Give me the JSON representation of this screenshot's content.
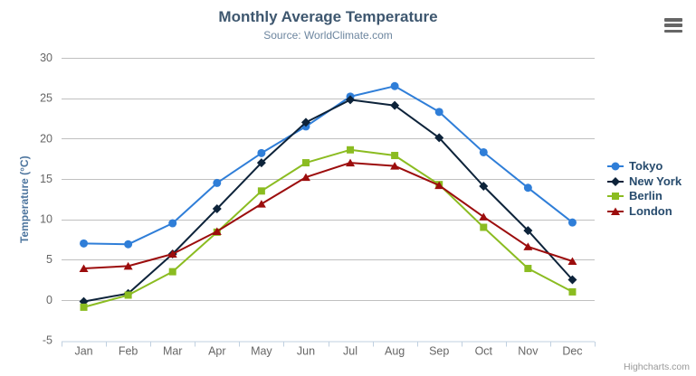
{
  "header": {
    "title": "Monthly Average Temperature",
    "subtitle": "Source: WorldClimate.com"
  },
  "credits": {
    "label": "Highcharts.com"
  },
  "colors": {
    "title_text": "#3E576F",
    "subtitle_text": "#6D869F",
    "axis_label_text": "#666666",
    "yaxis_title_text": "#4d759e",
    "legend_text": "#274b6d",
    "gridline": "#C0C0C0",
    "axis_line": "#C0D0E0",
    "menu_icon": "#666666",
    "credits_text": "#999999"
  },
  "chart_data": {
    "type": "line",
    "title": "Monthly Average Temperature",
    "subtitle": "Source: WorldClimate.com",
    "categories": [
      "Jan",
      "Feb",
      "Mar",
      "Apr",
      "May",
      "Jun",
      "Jul",
      "Aug",
      "Sep",
      "Oct",
      "Nov",
      "Dec"
    ],
    "xlabel": "",
    "ylabel": "Temperature (°C)",
    "ylim": [
      -5,
      30
    ],
    "ytick_step": 5,
    "grid": true,
    "legend_position": "right",
    "series": [
      {
        "name": "Tokyo",
        "color": "#2f7ed8",
        "marker": "circle",
        "values": [
          7.0,
          6.9,
          9.5,
          14.5,
          18.2,
          21.5,
          25.2,
          26.5,
          23.3,
          18.3,
          13.9,
          9.6
        ]
      },
      {
        "name": "New York",
        "color": "#0d233a",
        "marker": "diamond",
        "values": [
          -0.2,
          0.8,
          5.7,
          11.3,
          17.0,
          22.0,
          24.8,
          24.1,
          20.1,
          14.1,
          8.6,
          2.5
        ]
      },
      {
        "name": "Berlin",
        "color": "#8bbc21",
        "marker": "square",
        "values": [
          -0.9,
          0.6,
          3.5,
          8.4,
          13.5,
          17.0,
          18.6,
          17.9,
          14.3,
          9.0,
          3.9,
          1.0
        ]
      },
      {
        "name": "London",
        "color": "#9c0d0d",
        "marker": "triangle",
        "values": [
          3.9,
          4.2,
          5.7,
          8.5,
          11.9,
          15.2,
          17.0,
          16.6,
          14.2,
          10.3,
          6.6,
          4.8
        ]
      }
    ]
  }
}
